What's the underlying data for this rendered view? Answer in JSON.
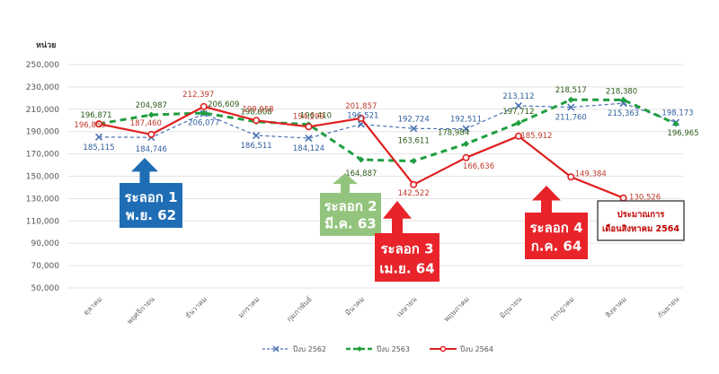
{
  "chart_data": {
    "type": "line",
    "ylabel": "หน่วย",
    "ylim": [
      50000,
      250000
    ],
    "yticks": [
      "250,000",
      "230,000",
      "210,000",
      "190,000",
      "170,000",
      "150,000",
      "130,000",
      "110,000",
      "90,000",
      "70,000",
      "50,000"
    ],
    "categories": [
      "ตุลาคม",
      "พฤศจิกายน",
      "ธันวาคม",
      "มกราคม",
      "กุมภาพันธ์",
      "มีนาคม",
      "เมษายน",
      "พฤษภาคม",
      "มิถุนายน",
      "กรกฎาคม",
      "สิงหาคม",
      "กันยายน"
    ],
    "grid": true,
    "legend_position": "bottom",
    "series": [
      {
        "name": "ปีงบ 2562",
        "color": "#4a72b4",
        "style": "dashed-x",
        "values": [
          185115,
          184746,
          206077,
          186511,
          184124,
          196521,
          192724,
          192511,
          213112,
          211760,
          215363,
          198173
        ],
        "labels": [
          "185,115",
          "184,746",
          "206,077",
          "186,511",
          "184,124",
          "196,521",
          "192,724",
          "192,511",
          "213,112",
          "211,760",
          "215,363",
          "198,173"
        ]
      },
      {
        "name": "ปีงบ 2563",
        "color": "#1f9e40",
        "style": "dashed-diamond",
        "values": [
          196871,
          204987,
          206609,
          198808,
          196410,
          164887,
          163611,
          178984,
          197712,
          218517,
          218380,
          196965
        ],
        "labels": [
          "196,871",
          "204,987",
          "206,609",
          "198,808",
          "196,410",
          "164,887",
          "163,611",
          "178,984",
          "197,712",
          "218,517",
          "218,380",
          "196,965"
        ]
      },
      {
        "name": "ปีงบ 2564",
        "color": "#e02020",
        "style": "solid-circle",
        "values": [
          196853,
          187460,
          212397,
          199958,
          194299,
          201857,
          142522,
          166636,
          185912,
          149384,
          130526,
          null
        ],
        "labels": [
          "196,853",
          "187,460",
          "212,397",
          "199,958",
          "194,299",
          "201,857",
          "142,522",
          "166,636",
          "185,912",
          "149,384",
          "130,526",
          ""
        ]
      }
    ],
    "annotations": [
      {
        "line1": "ระลอก 1",
        "line2": "พ.ย. 62",
        "color": "#1f6db5"
      },
      {
        "line1": "ระลอก 2",
        "line2": "มี.ค. 63",
        "color": "#93c47d"
      },
      {
        "line1": "ระลอก 3",
        "line2": "เม.ย. 64",
        "color": "#e8232a"
      },
      {
        "line1": "ระลอก 4",
        "line2": "ก.ค. 64",
        "color": "#e8232a"
      }
    ],
    "note": {
      "line1": "ประมาณการ",
      "line2": "เดือนสิงหาคม 2564"
    }
  }
}
